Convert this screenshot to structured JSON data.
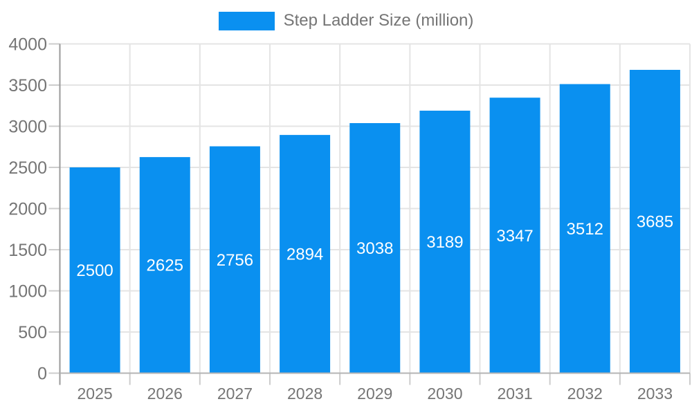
{
  "chart_data": {
    "type": "bar",
    "title": "Step Ladder Size (million)",
    "categories": [
      "2025",
      "2026",
      "2027",
      "2028",
      "2029",
      "2030",
      "2031",
      "2032",
      "2033"
    ],
    "series": [
      {
        "name": "Step Ladder Size (million)",
        "values": [
          2500,
          2625,
          2756,
          2894,
          3038,
          3189,
          3347,
          3512,
          3685
        ]
      }
    ],
    "xlabel": "",
    "ylabel": "",
    "ylim": [
      0,
      4000
    ],
    "y_ticks": [
      0,
      500,
      1000,
      1500,
      2000,
      2500,
      3000,
      3500,
      4000
    ],
    "grid": true,
    "legend_position": "top",
    "bar_value_labels": true,
    "colors": {
      "bar": "#0A90F0",
      "axis_text": "#757575",
      "bar_label_text": "#ffffff",
      "gridline": "#e4e4e4",
      "axis_line": "#9a9a9a",
      "zero_line": "#b4b4b4",
      "tick": "#cccccc",
      "background": "#ffffff"
    }
  }
}
